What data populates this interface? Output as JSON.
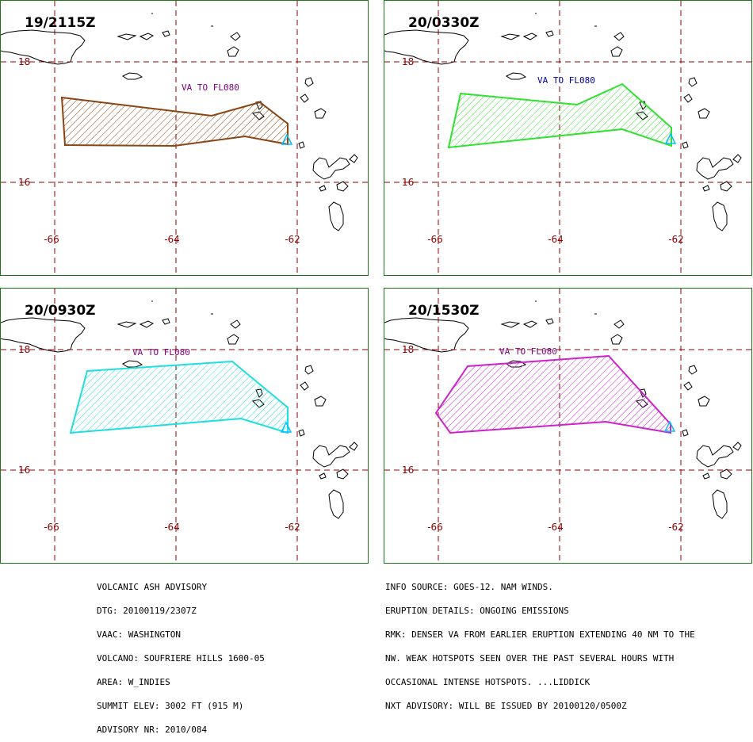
{
  "panels": [
    {
      "time": "19/2115Z",
      "level": "VA TO FL080",
      "color": "#8b4513",
      "label_color": "#800080"
    },
    {
      "time": "20/0330Z",
      "level": "VA TO FL080",
      "color": "#32e032",
      "label_color": "#0000a0"
    },
    {
      "time": "20/0930Z",
      "level": "VA TO FL080",
      "color": "#22dddd",
      "label_color": "#800080"
    },
    {
      "time": "20/1530Z",
      "level": "VA TO FL080",
      "color": "#cc22cc",
      "label_color": "#800080"
    }
  ],
  "axis": {
    "lat_labels": [
      "18",
      "16"
    ],
    "lon_labels": [
      "-66",
      "-64",
      "-62"
    ]
  },
  "volcano_marker_color": "#00bfff",
  "advisory_left": [
    "VOLCANIC ASH ADVISORY",
    "DTG: 20100119/2307Z",
    "VAAC: WASHINGTON",
    "VOLCANO: SOUFRIERE HILLS 1600-05",
    "AREA: W_INDIES",
    "SUMMIT ELEV: 3002 FT (915 M)",
    "ADVISORY NR: 2010/084"
  ],
  "advisory_right": [
    "INFO SOURCE: GOES-12. NAM WINDS.",
    "ERUPTION DETAILS: ONGOING EMISSIONS",
    "RMK: DENSER VA FROM EARLIER ERUPTION EXTENDING 40 NM TO THE",
    "NW. WEAK HOTSPOTS SEEN OVER THE PAST SEVERAL HOURS WITH",
    "OCCASIONAL INTENSE HOTSPOTS. ...LIDDICK",
    "NXT ADVISORY: WILL BE ISSUED BY 20100120/0500Z"
  ]
}
